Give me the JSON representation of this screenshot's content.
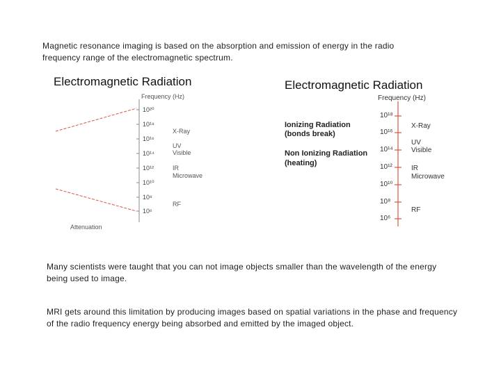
{
  "intro_text": "Magnetic resonance imaging is based on the absorption and emission of energy in the radio frequency range of the electromagnetic spectrum.",
  "left_figure": {
    "title": "Electromagnetic Radiation",
    "axis_label": "Frequency (Hz)",
    "ticks": [
      "10²⁰",
      "10¹⁸",
      "10¹⁶",
      "10¹⁴",
      "10¹²",
      "10¹⁰",
      "10⁸",
      "10⁶"
    ],
    "bands": [
      "X-Ray",
      "UV",
      "Visible",
      "IR",
      "Microwave",
      "RF"
    ],
    "bottom_label": "Attenuation"
  },
  "right_figure": {
    "title": "Electromagnetic Radiation",
    "axis_label": "Frequency (Hz)",
    "ticks": [
      "10¹⁸",
      "10¹⁶",
      "10¹⁴",
      "10¹²",
      "10¹⁰",
      "10⁸",
      "10⁶"
    ],
    "ionizing": {
      "line1": "Ionizing Radiation",
      "line2": "(bonds break)"
    },
    "non_ionizing": {
      "line1": "Non Ionizing Radiation",
      "line2": "(heating)"
    },
    "bands": [
      "X-Ray",
      "UV",
      "Visible",
      "IR",
      "Microwave",
      "RF"
    ],
    "line_color": "#d9543f"
  },
  "paragraph2": "Many scientists were taught that you can not image objects smaller than the wavelength of the energy being used to image.",
  "paragraph3": "MRI gets around this limitation by producing images based on spatial variations in the phase and frequency of the radio frequency energy being absorbed and emitted by the imaged object."
}
